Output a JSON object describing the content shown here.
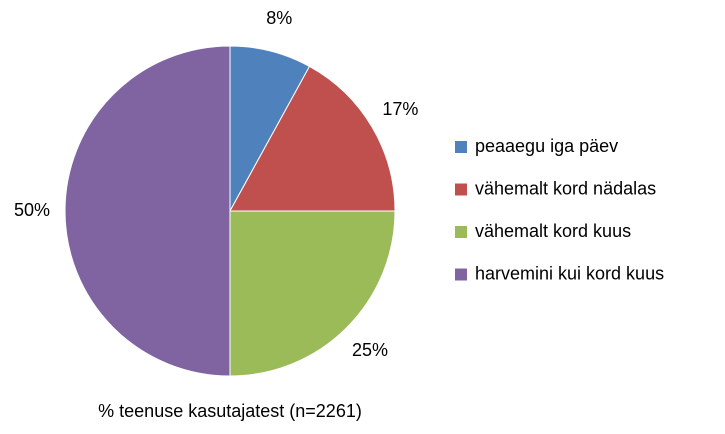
{
  "chart_data": {
    "type": "pie",
    "categories": [
      "peaaegu iga päev",
      "vähemalt kord nädalas",
      "vähemalt kord kuus",
      "harvemini kui kord kuus"
    ],
    "values": [
      8,
      17,
      25,
      50
    ],
    "value_labels": [
      "8%",
      "17%",
      "25%",
      "50%"
    ],
    "colors": [
      "#4f81bd",
      "#c0504d",
      "#9bbb59",
      "#8064a2"
    ],
    "xlabel": "% teenuse kasutajatest (n=2261)",
    "legend": "right"
  }
}
